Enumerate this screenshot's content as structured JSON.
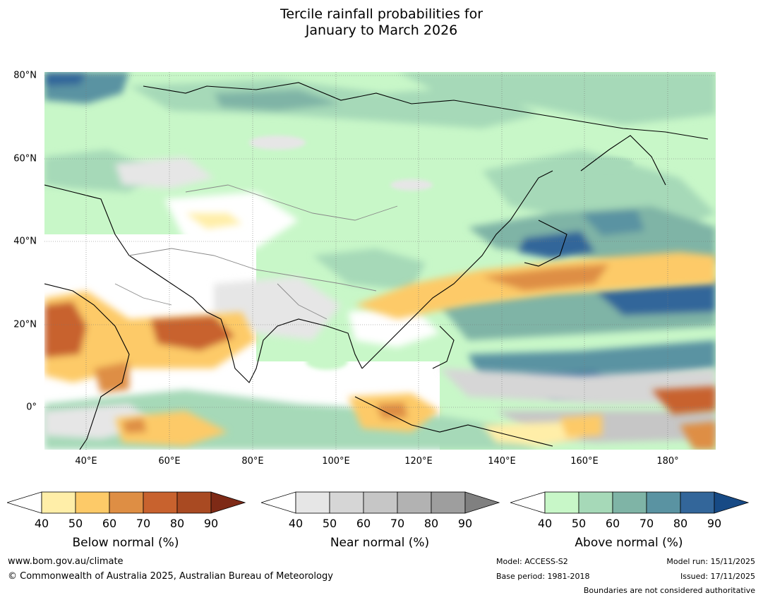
{
  "title": {
    "line1": "Tercile rainfall probabilities for",
    "line2": "January to March 2026"
  },
  "map": {
    "lat_labels": [
      "80°N",
      "60°N",
      "40°N",
      "20°N",
      "0°"
    ],
    "lon_labels": [
      "40°E",
      "60°E",
      "80°E",
      "100°E",
      "120°E",
      "140°E",
      "160°E",
      "180°"
    ],
    "lat_range": [
      -10,
      81
    ],
    "lon_range": [
      30,
      191
    ]
  },
  "colorbars": [
    {
      "name": "below",
      "label": "Below normal (%)",
      "ticks": [
        "40",
        "50",
        "60",
        "70",
        "80",
        "90"
      ],
      "colors": [
        "#ffeea8",
        "#fdca68",
        "#de8e44",
        "#c8622e",
        "#a94a22",
        "#7e2a16"
      ]
    },
    {
      "name": "near",
      "label": "Near normal (%)",
      "ticks": [
        "40",
        "50",
        "60",
        "70",
        "80",
        "90"
      ],
      "colors": [
        "#e6e6e6",
        "#d6d6d6",
        "#c6c6c6",
        "#b2b2b2",
        "#9e9e9e",
        "#808080"
      ]
    },
    {
      "name": "above",
      "label": "Above normal (%)",
      "ticks": [
        "40",
        "50",
        "60",
        "70",
        "80",
        "90"
      ],
      "colors": [
        "#c8f7c8",
        "#a6d9b8",
        "#7fb4a6",
        "#5a93a2",
        "#33669a",
        "#174a85"
      ]
    }
  ],
  "footer": {
    "website": "www.bom.gov.au/climate",
    "copyright": "© Commonwealth of Australia 2025, Australian Bureau of Meteorology",
    "model": "Model: ACCESS-S2",
    "base_period": "Base period: 1981-2018",
    "model_run": "Model run: 15/11/2025",
    "issued": "Issued: 17/11/2025",
    "disclaimer": "Boundaries are not considered authoritative"
  }
}
